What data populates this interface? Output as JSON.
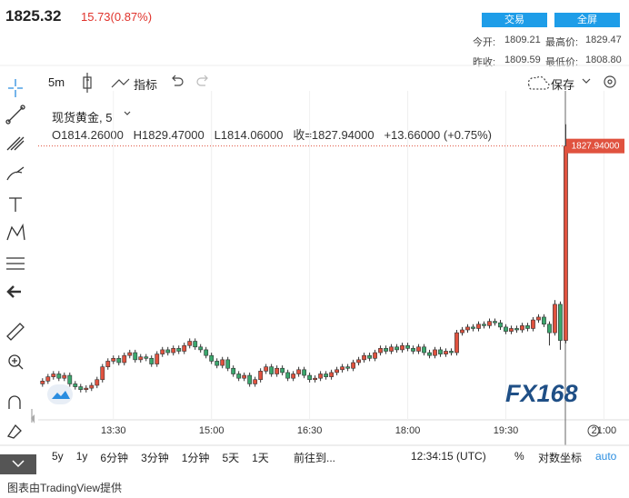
{
  "header": {
    "price": "1825.32",
    "change": "15.73(0.87%)",
    "buttons": [
      "交易",
      "全屏"
    ],
    "quotes": [
      [
        "今开:",
        "1809.21",
        "最高价:",
        "1829.47"
      ],
      [
        "昨收:",
        "1809.59",
        "最低价:",
        "1808.80"
      ]
    ]
  },
  "toolbar": {
    "interval": "5m",
    "indicators": "指标",
    "save": "保存"
  },
  "legend": {
    "symbol": "现货黄金, 5",
    "open": "O1814.26000",
    "high": "H1829.47000",
    "low": "L1814.06000",
    "close": "收=1827.94000",
    "change": "+13.66000 (+0.75%)"
  },
  "bottom_bar": {
    "ranges": [
      "5y",
      "1y",
      "6分钟",
      "3分钟",
      "1分钟",
      "5天",
      "1天"
    ],
    "goto": "前往到...",
    "time": "12:34:15 (UTC)",
    "percent": "%",
    "log": "对数坐标",
    "auto": "auto"
  },
  "watermark": "FX168",
  "footer": "图表由TradingView提供",
  "chart_data": {
    "type": "candlestick",
    "up_color": "#e0523f",
    "down_color": "#3aa76d",
    "xlim": [
      741,
      1283
    ],
    "xticks": [
      {
        "value": 810,
        "label": "13:30"
      },
      {
        "value": 900,
        "label": "15:00"
      },
      {
        "value": 990,
        "label": "16:30"
      },
      {
        "value": 1080,
        "label": "18:00"
      },
      {
        "value": 1170,
        "label": "19:30"
      },
      {
        "value": 1260,
        "label": "21:00"
      }
    ],
    "ylim": [
      1808.67,
      1831.82
    ],
    "last_value_label": "1827.94000",
    "x": [
      745,
      750,
      755,
      760,
      765,
      770,
      775,
      780,
      785,
      790,
      795,
      800,
      805,
      810,
      815,
      820,
      825,
      830,
      835,
      840,
      845,
      850,
      855,
      860,
      865,
      870,
      875,
      880,
      885,
      890,
      895,
      900,
      905,
      910,
      915,
      920,
      925,
      930,
      935,
      940,
      945,
      950,
      955,
      960,
      965,
      970,
      975,
      980,
      985,
      990,
      995,
      1000,
      1005,
      1010,
      1015,
      1020,
      1025,
      1030,
      1035,
      1040,
      1045,
      1050,
      1055,
      1060,
      1065,
      1070,
      1075,
      1080,
      1085,
      1090,
      1095,
      1100,
      1105,
      1110,
      1115,
      1120,
      1125,
      1130,
      1135,
      1140,
      1145,
      1150,
      1155,
      1160,
      1165,
      1170,
      1175,
      1180,
      1185,
      1190,
      1195,
      1200,
      1205,
      1210,
      1215,
      1220,
      1225
    ],
    "open": [
      1811.2,
      1811.4,
      1811.7,
      1811.9,
      1811.6,
      1811.8,
      1811.2,
      1811.0,
      1810.8,
      1810.9,
      1811.1,
      1811.5,
      1812.4,
      1812.8,
      1813.0,
      1812.7,
      1813.2,
      1813.4,
      1812.9,
      1813.1,
      1813.0,
      1812.6,
      1813.3,
      1813.6,
      1813.4,
      1813.7,
      1813.5,
      1813.9,
      1814.2,
      1813.8,
      1813.6,
      1813.2,
      1812.8,
      1812.5,
      1812.9,
      1812.3,
      1811.9,
      1811.6,
      1811.8,
      1811.2,
      1811.5,
      1812.1,
      1812.4,
      1811.9,
      1812.3,
      1812.0,
      1811.6,
      1811.9,
      1812.2,
      1811.8,
      1811.5,
      1811.6,
      1811.9,
      1811.7,
      1812.0,
      1812.2,
      1812.4,
      1812.3,
      1812.7,
      1812.9,
      1813.2,
      1813.0,
      1813.4,
      1813.7,
      1813.5,
      1813.8,
      1813.6,
      1813.9,
      1813.7,
      1813.5,
      1813.8,
      1813.4,
      1813.2,
      1813.6,
      1813.3,
      1813.5,
      1813.4,
      1814.8,
      1815.0,
      1815.2,
      1815.1,
      1815.4,
      1815.3,
      1815.6,
      1815.5,
      1815.2,
      1814.9,
      1815.1,
      1815.0,
      1815.3,
      1815.1,
      1815.7,
      1815.9,
      1815.4,
      1814.8,
      1816.8,
      1814.26
    ],
    "high": [
      1811.6,
      1811.9,
      1812.1,
      1812.1,
      1812.0,
      1812.0,
      1811.4,
      1811.2,
      1811.1,
      1811.3,
      1811.7,
      1812.6,
      1813.0,
      1813.2,
      1813.2,
      1813.4,
      1813.6,
      1813.6,
      1813.3,
      1813.3,
      1813.2,
      1813.5,
      1813.8,
      1813.8,
      1813.9,
      1813.9,
      1814.1,
      1814.4,
      1814.4,
      1814.0,
      1813.8,
      1813.4,
      1813.0,
      1813.1,
      1813.1,
      1812.5,
      1812.1,
      1812.0,
      1812.0,
      1811.7,
      1812.3,
      1812.6,
      1812.6,
      1812.5,
      1812.5,
      1812.2,
      1812.1,
      1812.4,
      1812.4,
      1812.0,
      1811.8,
      1812.1,
      1812.1,
      1812.2,
      1812.4,
      1812.6,
      1812.6,
      1812.9,
      1813.1,
      1813.4,
      1813.4,
      1813.6,
      1813.9,
      1813.9,
      1814.0,
      1814.0,
      1814.1,
      1814.1,
      1813.9,
      1814.0,
      1814.0,
      1813.6,
      1813.8,
      1813.8,
      1813.7,
      1813.7,
      1815.0,
      1815.2,
      1815.4,
      1815.4,
      1815.6,
      1815.6,
      1815.8,
      1815.8,
      1815.7,
      1815.4,
      1815.3,
      1815.3,
      1815.5,
      1815.5,
      1815.9,
      1816.1,
      1816.1,
      1815.6,
      1817.1,
      1817.0,
      1829.47
    ],
    "low": [
      1811.0,
      1811.2,
      1811.5,
      1811.4,
      1811.4,
      1811.0,
      1810.8,
      1810.6,
      1810.6,
      1810.7,
      1810.9,
      1811.3,
      1812.2,
      1812.6,
      1812.5,
      1812.5,
      1813.0,
      1812.7,
      1812.7,
      1812.8,
      1812.4,
      1812.4,
      1813.1,
      1813.2,
      1813.2,
      1813.3,
      1813.3,
      1813.7,
      1813.6,
      1813.4,
      1813.0,
      1812.6,
      1812.3,
      1812.3,
      1812.1,
      1811.7,
      1811.4,
      1811.4,
      1811.0,
      1811.0,
      1811.3,
      1811.9,
      1811.7,
      1811.7,
      1811.8,
      1811.4,
      1811.4,
      1811.7,
      1811.6,
      1811.3,
      1811.3,
      1811.4,
      1811.5,
      1811.5,
      1811.8,
      1812.0,
      1812.1,
      1812.1,
      1812.5,
      1812.7,
      1812.8,
      1812.8,
      1813.2,
      1813.3,
      1813.3,
      1813.4,
      1813.4,
      1813.5,
      1813.3,
      1813.3,
      1813.2,
      1813.0,
      1813.0,
      1813.1,
      1813.1,
      1813.2,
      1813.2,
      1814.6,
      1814.8,
      1814.9,
      1814.9,
      1815.1,
      1815.1,
      1815.3,
      1815.0,
      1814.7,
      1814.7,
      1814.8,
      1814.8,
      1814.9,
      1814.9,
      1815.5,
      1815.2,
      1813.9,
      1814.6,
      1813.6,
      1814.06
    ],
    "close": [
      1811.4,
      1811.7,
      1811.9,
      1811.6,
      1811.8,
      1811.2,
      1811.0,
      1810.8,
      1810.9,
      1811.1,
      1811.5,
      1812.4,
      1812.8,
      1813.0,
      1812.7,
      1813.2,
      1813.4,
      1812.9,
      1813.1,
      1813.0,
      1812.6,
      1813.3,
      1813.6,
      1813.4,
      1813.7,
      1813.5,
      1813.9,
      1814.2,
      1813.8,
      1813.6,
      1813.2,
      1812.8,
      1812.5,
      1812.9,
      1812.3,
      1811.9,
      1811.6,
      1811.8,
      1811.2,
      1811.5,
      1812.1,
      1812.4,
      1811.9,
      1812.3,
      1812.0,
      1811.6,
      1811.9,
      1812.2,
      1811.8,
      1811.5,
      1811.6,
      1811.9,
      1811.7,
      1812.0,
      1812.2,
      1812.4,
      1812.3,
      1812.7,
      1812.9,
      1813.2,
      1813.0,
      1813.4,
      1813.7,
      1813.5,
      1813.8,
      1813.6,
      1813.9,
      1813.7,
      1813.5,
      1813.8,
      1813.4,
      1813.2,
      1813.6,
      1813.3,
      1813.5,
      1813.4,
      1814.8,
      1815.0,
      1815.2,
      1815.1,
      1815.4,
      1815.3,
      1815.6,
      1815.5,
      1815.2,
      1814.9,
      1815.1,
      1815.0,
      1815.3,
      1815.1,
      1815.7,
      1815.9,
      1815.4,
      1814.8,
      1816.8,
      1814.26,
      1827.94
    ]
  }
}
